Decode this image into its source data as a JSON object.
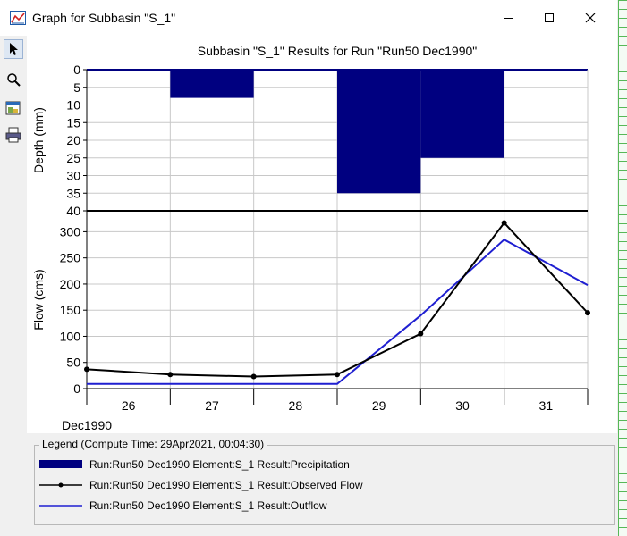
{
  "window": {
    "title": "Graph for Subbasin \"S_1\"",
    "minimize_glyph": "─",
    "maximize_glyph": "☐",
    "close_glyph": "✕"
  },
  "toolbar": {
    "icons": [
      "pointer-icon",
      "zoom-icon",
      "properties-icon",
      "print-icon"
    ]
  },
  "colors": {
    "precipitation": "#000080",
    "observed": "#000000",
    "outflow": "#1f1fd1",
    "grid": "#c8c8c8"
  },
  "chart_data": [
    {
      "type": "bar",
      "title": "Subbasin \"S_1\" Results for Run \"Run50 Dec1990\"",
      "ylabel": "Depth (mm)",
      "y_inverted": true,
      "ylim": [
        0,
        40
      ],
      "yticks": [
        0,
        5,
        10,
        15,
        20,
        25,
        30,
        35,
        40
      ],
      "series": [
        {
          "name": "Run:Run50 Dec1990 Element:S_1 Result:Precipitation",
          "intervals": [
            {
              "start": "26",
              "end": "27",
              "value": 0
            },
            {
              "start": "27",
              "end": "28",
              "value": 8
            },
            {
              "start": "28",
              "end": "29",
              "value": 0
            },
            {
              "start": "29",
              "end": "30",
              "value": 35
            },
            {
              "start": "30",
              "end": "31",
              "value": 25
            },
            {
              "start": "31",
              "end": "32",
              "value": 0
            }
          ]
        }
      ]
    },
    {
      "type": "line",
      "ylabel": "Flow (cms)",
      "xlabel": "Dec1990",
      "ylim": [
        0,
        340
      ],
      "yticks": [
        0,
        50,
        100,
        150,
        200,
        250,
        300
      ],
      "x_ticks": [
        "26",
        "27",
        "28",
        "29",
        "30",
        "31"
      ],
      "x": [
        26,
        27,
        28,
        29,
        30,
        31,
        32
      ],
      "grid": true,
      "series": [
        {
          "name": "Run:Run50 Dec1990 Element:S_1 Result:Observed Flow",
          "y": [
            37,
            27,
            23,
            27,
            105,
            317,
            145
          ],
          "markers": true
        },
        {
          "name": "Run:Run50 Dec1990 Element:S_1 Result:Outflow",
          "y": [
            9,
            9,
            9,
            9,
            140,
            285,
            198
          ],
          "markers": false
        }
      ]
    }
  ],
  "legend": {
    "title": "Legend (Compute Time: 29Apr2021, 00:04:30)",
    "placement": "bottom"
  }
}
